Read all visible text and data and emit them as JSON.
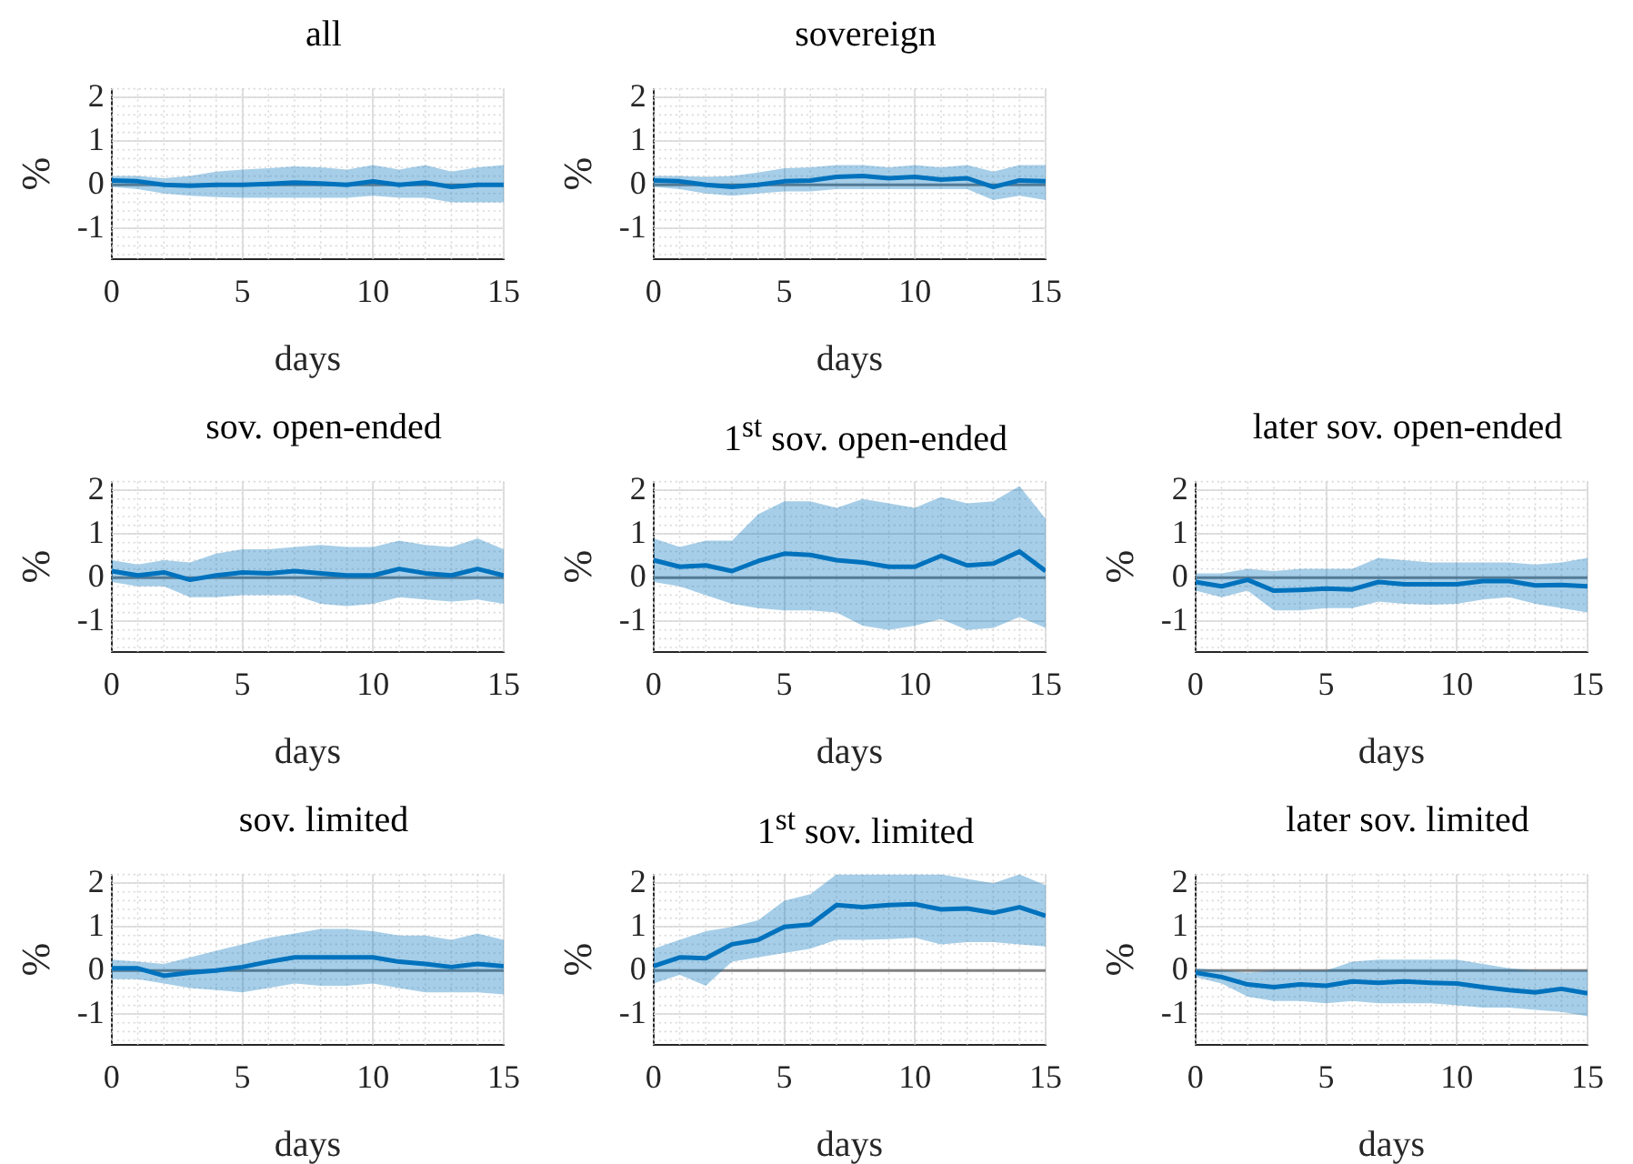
{
  "chart_data": [
    {
      "type": "line",
      "title": "all",
      "xlabel": "days",
      "ylabel": "%",
      "x": [
        0,
        1,
        2,
        3,
        4,
        5,
        6,
        7,
        8,
        9,
        10,
        11,
        12,
        13,
        14,
        15
      ],
      "xlim": [
        0,
        15
      ],
      "xticks": [
        0,
        5,
        10,
        15
      ],
      "ylim": [
        -1.7,
        2.2
      ],
      "yticks": [
        -1,
        0,
        1,
        2
      ],
      "grid": true,
      "ref_lines": [
        {
          "axis": "y",
          "value": 0,
          "color": "#808080"
        }
      ],
      "series": [
        {
          "color": "#0072bd",
          "values": [
            0.1,
            0.08,
            0,
            -0.02,
            0,
            0,
            0.02,
            0.05,
            0.03,
            0,
            0.08,
            0,
            0.05,
            -0.05,
            0,
            0
          ],
          "lower": [
            -0.05,
            -0.1,
            -0.2,
            -0.25,
            -0.28,
            -0.3,
            -0.3,
            -0.3,
            -0.3,
            -0.3,
            -0.25,
            -0.3,
            -0.3,
            -0.4,
            -0.4,
            -0.4
          ],
          "upper": [
            0.2,
            0.2,
            0.15,
            0.2,
            0.3,
            0.35,
            0.38,
            0.42,
            0.4,
            0.35,
            0.45,
            0.35,
            0.45,
            0.3,
            0.4,
            0.45
          ]
        }
      ]
    },
    {
      "type": "line",
      "title": "sovereign",
      "xlabel": "days",
      "ylabel": "%",
      "x": [
        0,
        1,
        2,
        3,
        4,
        5,
        6,
        7,
        8,
        9,
        10,
        11,
        12,
        13,
        14,
        15
      ],
      "xlim": [
        0,
        15
      ],
      "xticks": [
        0,
        5,
        10,
        15
      ],
      "ylim": [
        -1.7,
        2.2
      ],
      "yticks": [
        -1,
        0,
        1,
        2
      ],
      "grid": true,
      "ref_lines": [
        {
          "axis": "y",
          "value": 0,
          "color": "#808080"
        }
      ],
      "series": [
        {
          "color": "#0072bd",
          "values": [
            0.1,
            0.08,
            0,
            -0.05,
            0,
            0.08,
            0.1,
            0.18,
            0.2,
            0.15,
            0.18,
            0.12,
            0.15,
            -0.05,
            0.1,
            0.08
          ],
          "lower": [
            -0.05,
            -0.1,
            -0.2,
            -0.25,
            -0.2,
            -0.15,
            -0.15,
            -0.1,
            -0.1,
            -0.1,
            -0.1,
            -0.1,
            -0.1,
            -0.35,
            -0.25,
            -0.35
          ],
          "upper": [
            0.2,
            0.2,
            0.18,
            0.2,
            0.28,
            0.38,
            0.4,
            0.45,
            0.45,
            0.4,
            0.45,
            0.4,
            0.45,
            0.3,
            0.45,
            0.45
          ]
        }
      ]
    },
    {
      "type": "line",
      "title": "sov. open-ended",
      "xlabel": "days",
      "ylabel": "%",
      "x": [
        0,
        1,
        2,
        3,
        4,
        5,
        6,
        7,
        8,
        9,
        10,
        11,
        12,
        13,
        14,
        15
      ],
      "xlim": [
        0,
        15
      ],
      "xticks": [
        0,
        5,
        10,
        15
      ],
      "ylim": [
        -1.7,
        2.2
      ],
      "yticks": [
        -1,
        0,
        1,
        2
      ],
      "grid": true,
      "ref_lines": [
        {
          "axis": "y",
          "value": 0,
          "color": "#808080"
        }
      ],
      "series": [
        {
          "color": "#0072bd",
          "values": [
            0.15,
            0.05,
            0.12,
            -0.05,
            0.05,
            0.12,
            0.1,
            0.15,
            0.1,
            0.05,
            0.05,
            0.2,
            0.1,
            0.05,
            0.2,
            0.05
          ],
          "lower": [
            -0.1,
            -0.2,
            -0.2,
            -0.45,
            -0.45,
            -0.4,
            -0.4,
            -0.4,
            -0.6,
            -0.65,
            -0.6,
            -0.45,
            -0.5,
            -0.55,
            -0.5,
            -0.6
          ],
          "upper": [
            0.4,
            0.3,
            0.4,
            0.35,
            0.55,
            0.65,
            0.65,
            0.7,
            0.75,
            0.7,
            0.7,
            0.85,
            0.75,
            0.7,
            0.9,
            0.65
          ]
        }
      ]
    },
    {
      "type": "line",
      "title": "1$^{st}$ sov. open-ended",
      "xlabel": "days",
      "ylabel": "%",
      "x": [
        0,
        1,
        2,
        3,
        4,
        5,
        6,
        7,
        8,
        9,
        10,
        11,
        12,
        13,
        14,
        15
      ],
      "xlim": [
        0,
        15
      ],
      "xticks": [
        0,
        5,
        10,
        15
      ],
      "ylim": [
        -1.7,
        2.2
      ],
      "yticks": [
        -1,
        0,
        1,
        2
      ],
      "grid": true,
      "ref_lines": [
        {
          "axis": "y",
          "value": 0,
          "color": "#808080"
        }
      ],
      "series": [
        {
          "color": "#0072bd",
          "values": [
            0.4,
            0.25,
            0.28,
            0.15,
            0.38,
            0.55,
            0.52,
            0.4,
            0.35,
            0.25,
            0.25,
            0.5,
            0.28,
            0.32,
            0.6,
            0.15
          ],
          "lower": [
            -0.1,
            -0.2,
            -0.4,
            -0.6,
            -0.7,
            -0.75,
            -0.75,
            -0.8,
            -1.1,
            -1.2,
            -1.1,
            -0.95,
            -1.2,
            -1.15,
            -0.9,
            -1.15
          ],
          "upper": [
            0.9,
            0.7,
            0.85,
            0.85,
            1.45,
            1.75,
            1.75,
            1.6,
            1.8,
            1.7,
            1.6,
            1.85,
            1.7,
            1.75,
            2.1,
            1.35
          ]
        }
      ]
    },
    {
      "type": "line",
      "title": "later sov. open-ended",
      "xlabel": "days",
      "ylabel": "%",
      "x": [
        0,
        1,
        2,
        3,
        4,
        5,
        6,
        7,
        8,
        9,
        10,
        11,
        12,
        13,
        14,
        15
      ],
      "xlim": [
        0,
        15
      ],
      "xticks": [
        0,
        5,
        10,
        15
      ],
      "ylim": [
        -1.7,
        2.2
      ],
      "yticks": [
        -1,
        0,
        1,
        2
      ],
      "grid": true,
      "ref_lines": [
        {
          "axis": "y",
          "value": 0,
          "color": "#808080"
        }
      ],
      "series": [
        {
          "color": "#0072bd",
          "values": [
            -0.1,
            -0.2,
            -0.05,
            -0.3,
            -0.28,
            -0.25,
            -0.27,
            -0.1,
            -0.15,
            -0.15,
            -0.15,
            -0.08,
            -0.08,
            -0.18,
            -0.17,
            -0.2
          ],
          "lower": [
            -0.3,
            -0.45,
            -0.3,
            -0.75,
            -0.75,
            -0.7,
            -0.7,
            -0.55,
            -0.6,
            -0.62,
            -0.6,
            -0.5,
            -0.45,
            -0.6,
            -0.7,
            -0.8
          ],
          "upper": [
            0.1,
            0.1,
            0.2,
            0.15,
            0.2,
            0.2,
            0.2,
            0.45,
            0.4,
            0.35,
            0.35,
            0.35,
            0.35,
            0.3,
            0.35,
            0.45
          ]
        }
      ]
    },
    {
      "type": "line",
      "title": "sov. limited",
      "xlabel": "days",
      "ylabel": "%",
      "x": [
        0,
        1,
        2,
        3,
        4,
        5,
        6,
        7,
        8,
        9,
        10,
        11,
        12,
        13,
        14,
        15
      ],
      "xlim": [
        0,
        15
      ],
      "xticks": [
        0,
        5,
        10,
        15
      ],
      "ylim": [
        -1.7,
        2.2
      ],
      "yticks": [
        -1,
        0,
        1,
        2
      ],
      "grid": true,
      "ref_lines": [
        {
          "axis": "y",
          "value": 0,
          "color": "#808080"
        }
      ],
      "series": [
        {
          "color": "#0072bd",
          "values": [
            0.05,
            0.05,
            -0.12,
            -0.05,
            0,
            0.08,
            0.2,
            0.3,
            0.3,
            0.3,
            0.3,
            0.2,
            0.15,
            0.08,
            0.15,
            0.1
          ],
          "lower": [
            -0.2,
            -0.2,
            -0.3,
            -0.4,
            -0.45,
            -0.5,
            -0.4,
            -0.3,
            -0.35,
            -0.35,
            -0.3,
            -0.4,
            -0.5,
            -0.5,
            -0.5,
            -0.55
          ],
          "upper": [
            0.25,
            0.2,
            0.15,
            0.3,
            0.45,
            0.6,
            0.75,
            0.85,
            0.95,
            0.95,
            0.9,
            0.8,
            0.8,
            0.7,
            0.85,
            0.7
          ]
        }
      ]
    },
    {
      "type": "line",
      "title": "1$^{st}$ sov. limited",
      "xlabel": "days",
      "ylabel": "%",
      "x": [
        0,
        1,
        2,
        3,
        4,
        5,
        6,
        7,
        8,
        9,
        10,
        11,
        12,
        13,
        14,
        15
      ],
      "xlim": [
        0,
        15
      ],
      "xticks": [
        0,
        5,
        10,
        15
      ],
      "ylim": [
        -1.7,
        2.2
      ],
      "yticks": [
        -1,
        0,
        1,
        2
      ],
      "grid": true,
      "ref_lines": [
        {
          "axis": "y",
          "value": 0,
          "color": "#808080"
        }
      ],
      "series": [
        {
          "color": "#0072bd",
          "values": [
            0.1,
            0.3,
            0.28,
            0.6,
            0.7,
            1.0,
            1.05,
            1.5,
            1.45,
            1.5,
            1.52,
            1.4,
            1.42,
            1.32,
            1.45,
            1.25
          ],
          "lower": [
            -0.3,
            -0.1,
            -0.35,
            0.2,
            0.3,
            0.4,
            0.5,
            0.7,
            0.7,
            0.72,
            0.75,
            0.6,
            0.65,
            0.65,
            0.6,
            0.55
          ],
          "upper": [
            0.5,
            0.7,
            0.9,
            1.0,
            1.15,
            1.6,
            1.75,
            2.2,
            2.2,
            2.2,
            2.2,
            2.2,
            2.1,
            2.0,
            2.2,
            1.95
          ]
        }
      ]
    },
    {
      "type": "line",
      "title": "later sov. limited",
      "xlabel": "days",
      "ylabel": "%",
      "x": [
        0,
        1,
        2,
        3,
        4,
        5,
        6,
        7,
        8,
        9,
        10,
        11,
        12,
        13,
        14,
        15
      ],
      "xlim": [
        0,
        15
      ],
      "xticks": [
        0,
        5,
        10,
        15
      ],
      "ylim": [
        -1.7,
        2.2
      ],
      "yticks": [
        -1,
        0,
        1,
        2
      ],
      "grid": true,
      "ref_lines": [
        {
          "axis": "y",
          "value": 0,
          "color": "#808080"
        }
      ],
      "series": [
        {
          "color": "#0072bd",
          "values": [
            -0.05,
            -0.15,
            -0.32,
            -0.38,
            -0.32,
            -0.35,
            -0.25,
            -0.28,
            -0.25,
            -0.28,
            -0.3,
            -0.38,
            -0.45,
            -0.5,
            -0.42,
            -0.52
          ],
          "lower": [
            -0.15,
            -0.3,
            -0.6,
            -0.7,
            -0.7,
            -0.75,
            -0.7,
            -0.75,
            -0.75,
            -0.75,
            -0.8,
            -0.85,
            -0.85,
            -0.9,
            -0.95,
            -1.05
          ],
          "upper": [
            0.05,
            0,
            -0.05,
            0,
            0,
            0,
            0.2,
            0.25,
            0.25,
            0.25,
            0.25,
            0.15,
            0.05,
            0,
            0,
            0
          ]
        }
      ]
    }
  ]
}
